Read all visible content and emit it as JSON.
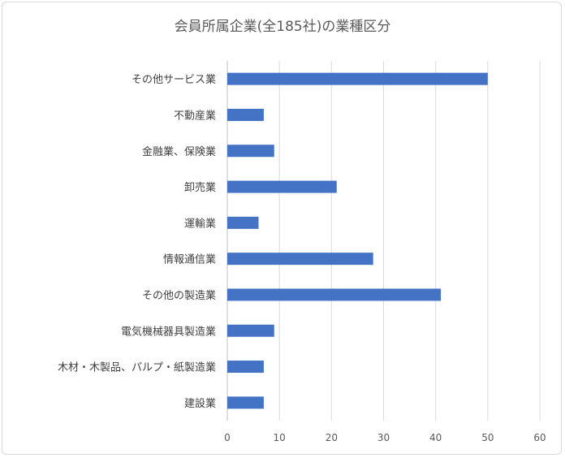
{
  "chart_data": {
    "type": "bar",
    "orientation": "horizontal",
    "title": "会員所属企業(全185社)の業種区分",
    "xlabel": "",
    "ylabel": "",
    "xlim": [
      0,
      60
    ],
    "xticks": [
      0,
      10,
      20,
      30,
      40,
      50,
      60
    ],
    "grid": true,
    "legend": "none",
    "categories": [
      "その他サービス業",
      "不動産業",
      "金融業、保険業",
      "卸売業",
      "運輸業",
      "情報通信業",
      "その他の製造業",
      "電気機械器具製造業",
      "木材・木製品、パルプ・紙製造業",
      "建設業"
    ],
    "values": [
      50,
      7,
      9,
      21,
      6,
      28,
      41,
      9,
      7,
      7
    ],
    "colors": {
      "bar": "#4472c4",
      "grid": "#d9d9d9"
    }
  }
}
